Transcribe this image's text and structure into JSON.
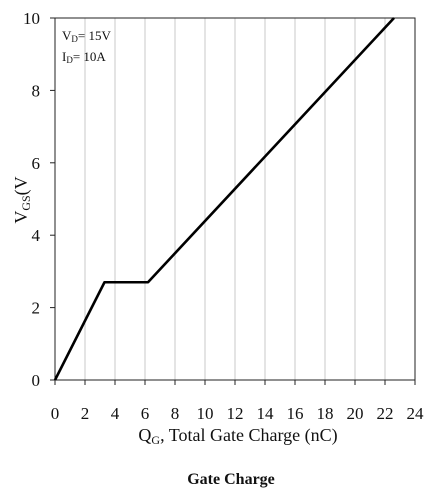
{
  "chart_data": {
    "type": "line",
    "title": "Gate Charge",
    "xlabel": {
      "main": "Q",
      "sub": "G",
      "rest": ", Total Gate Charge (nC)"
    },
    "ylabel": {
      "main": "V",
      "sub": "GS",
      "rest": "(V"
    },
    "xlim": [
      0,
      24
    ],
    "ylim": [
      0,
      10
    ],
    "x_ticks": [
      0,
      2,
      4,
      6,
      8,
      10,
      12,
      14,
      16,
      18,
      20,
      22,
      24
    ],
    "y_ticks": [
      0,
      2,
      4,
      6,
      8,
      10
    ],
    "grid": "vertical",
    "annotations": [
      {
        "main": "V",
        "sub": "D",
        "rest": "= 15V"
      },
      {
        "main": "I",
        "sub": "D",
        "rest": "= 10A"
      }
    ],
    "series": [
      {
        "x": [
          0,
          3.3,
          6.2,
          22.6
        ],
        "y": [
          0,
          2.7,
          2.7,
          10.0
        ]
      }
    ]
  }
}
